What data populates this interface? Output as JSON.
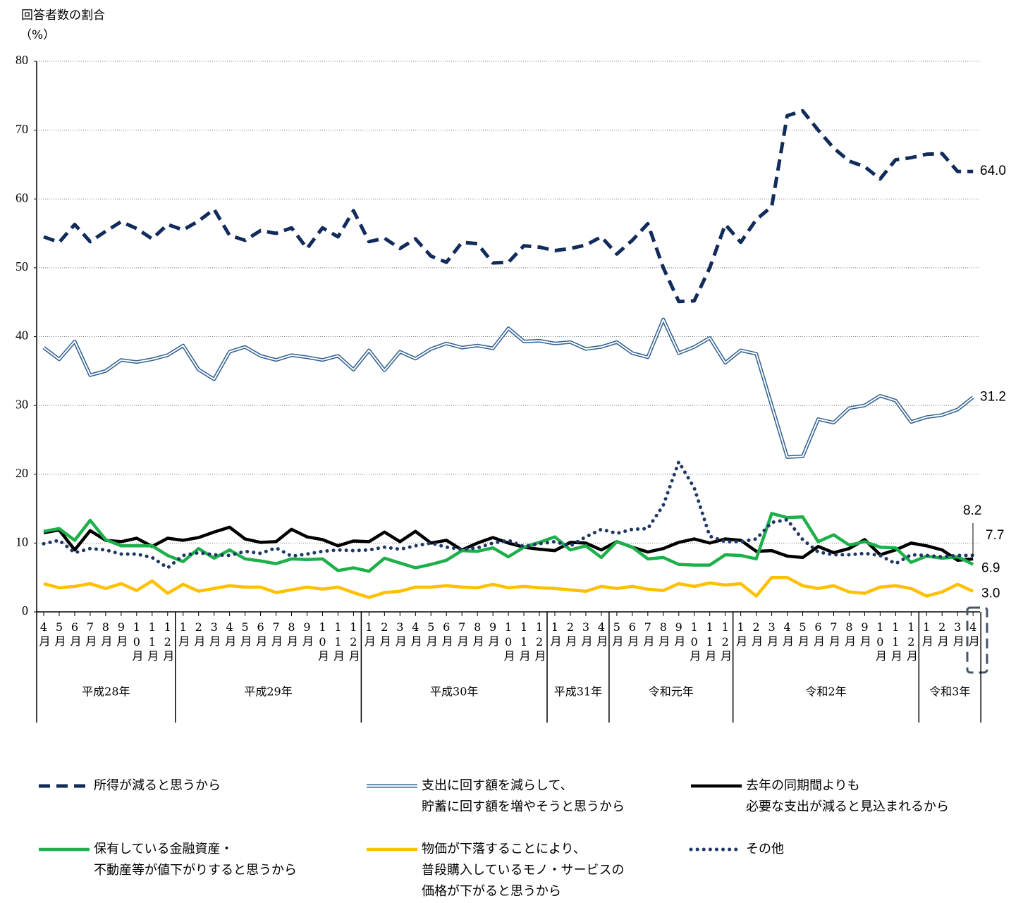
{
  "chart_data": {
    "type": "line",
    "ylabel": "回答者数の割合",
    "yunit": "（%）",
    "ylim": [
      0,
      80
    ],
    "yticks": [
      0,
      10,
      20,
      30,
      40,
      50,
      60,
      70,
      80
    ],
    "grid": true,
    "category_groups": [
      {
        "label": "平成28年",
        "categories": [
          "4月",
          "5月",
          "6月",
          "7月",
          "8月",
          "9月",
          "10月",
          "11月",
          "12月"
        ]
      },
      {
        "label": "平成29年",
        "categories": [
          "1月",
          "2月",
          "3月",
          "4月",
          "5月",
          "6月",
          "7月",
          "8月",
          "9月",
          "10月",
          "11月",
          "12月"
        ]
      },
      {
        "label": "平成30年",
        "categories": [
          "1月",
          "2月",
          "3月",
          "4月",
          "5月",
          "6月",
          "7月",
          "8月",
          "9月",
          "10月",
          "11月",
          "12月"
        ]
      },
      {
        "label": "平成31年",
        "categories": [
          "1月",
          "2月",
          "3月",
          "4月"
        ]
      },
      {
        "label": "令和元年",
        "categories": [
          "5月",
          "6月",
          "7月",
          "8月",
          "9月",
          "10月",
          "11月",
          "12月"
        ]
      },
      {
        "label": "令和2年",
        "categories": [
          "1月",
          "2月",
          "3月",
          "4月",
          "5月",
          "6月",
          "7月",
          "8月",
          "9月",
          "10月",
          "11月",
          "12月"
        ]
      },
      {
        "label": "令和3年",
        "categories": [
          "1月",
          "2月",
          "3月",
          "4月"
        ]
      }
    ],
    "series": [
      {
        "name": "所得が減ると思うから",
        "color": "#112b5a",
        "line_style": "dashed",
        "values": [
          54.5,
          53.7,
          56.3,
          53.8,
          55.3,
          56.7,
          55.7,
          54.2,
          56.3,
          55.5,
          56.8,
          58.5,
          54.7,
          54.0,
          55.4,
          55.0,
          55.8,
          52.8,
          55.8,
          54.5,
          58.3,
          53.8,
          54.3,
          52.8,
          54.2,
          51.7,
          50.8,
          53.7,
          53.5,
          50.7,
          50.8,
          53.2,
          53.0,
          52.5,
          52.8,
          53.3,
          54.5,
          52.0,
          54.0,
          56.4,
          50.0,
          45.1,
          45.2,
          50.0,
          56.3,
          53.7,
          57.0,
          58.9,
          72.1,
          72.8,
          70.0,
          67.4,
          65.5,
          64.7,
          62.9,
          65.7,
          66.0,
          66.5,
          66.6,
          64.0,
          64.0
        ],
        "value_labels": [
          null,
          null,
          null,
          null,
          null,
          null,
          null,
          null,
          null,
          null,
          null,
          null,
          null,
          null,
          null,
          null,
          null,
          null,
          null,
          null,
          null,
          null,
          null,
          null,
          null,
          null,
          null,
          null,
          null,
          null,
          null,
          null,
          null,
          null,
          null,
          null,
          null,
          null,
          null,
          null,
          null,
          null,
          null,
          null,
          null,
          null,
          null,
          null,
          null,
          null,
          null,
          null,
          null,
          null,
          null,
          null,
          null,
          null,
          null,
          null,
          "64.0"
        ]
      },
      {
        "name": "支出に回す額を減らして、\n貯蓄に回す額を増やそうと思うから",
        "color": "#2f5f8f",
        "line_style": "double",
        "values": [
          38.4,
          36.7,
          39.3,
          34.4,
          35.0,
          36.6,
          36.3,
          36.7,
          37.3,
          38.7,
          35.2,
          33.8,
          37.8,
          38.5,
          37.2,
          36.6,
          37.3,
          37.0,
          36.6,
          37.2,
          35.2,
          38.0,
          35.1,
          37.8,
          36.8,
          38.2,
          39.0,
          38.4,
          38.7,
          38.3,
          41.2,
          39.3,
          39.4,
          39.0,
          39.2,
          38.2,
          38.5,
          39.2,
          37.6,
          37.0,
          42.5,
          37.6,
          38.5,
          39.8,
          36.2,
          38.0,
          37.5,
          30.0,
          22.5,
          22.6,
          28.0,
          27.5,
          29.6,
          30.0,
          31.4,
          30.7,
          27.6,
          28.3,
          28.6,
          29.4,
          31.2
        ],
        "value_labels": [
          null,
          null,
          null,
          null,
          null,
          null,
          null,
          null,
          null,
          null,
          null,
          null,
          null,
          null,
          null,
          null,
          null,
          null,
          null,
          null,
          null,
          null,
          null,
          null,
          null,
          null,
          null,
          null,
          null,
          null,
          null,
          null,
          null,
          null,
          null,
          null,
          null,
          null,
          null,
          null,
          null,
          null,
          null,
          null,
          null,
          null,
          null,
          null,
          null,
          null,
          null,
          null,
          null,
          null,
          null,
          null,
          null,
          null,
          null,
          null,
          "31.2"
        ]
      },
      {
        "name": "去年の同期間よりも\n必要な支出が減ると見込まれるから",
        "color": "#000000",
        "line_style": "solid",
        "values": [
          11.5,
          11.9,
          9.0,
          11.8,
          10.4,
          10.2,
          10.7,
          9.5,
          10.7,
          10.4,
          10.8,
          11.6,
          12.3,
          10.6,
          10.1,
          10.2,
          12.0,
          10.9,
          10.5,
          9.6,
          10.3,
          10.2,
          11.6,
          10.2,
          11.7,
          10.0,
          10.4,
          9.0,
          10.0,
          10.8,
          10.0,
          9.4,
          9.1,
          8.9,
          10.1,
          10.0,
          9.0,
          10.2,
          9.4,
          8.7,
          9.2,
          10.1,
          10.6,
          10.0,
          10.6,
          10.4,
          8.8,
          8.9,
          8.1,
          7.9,
          9.5,
          8.6,
          9.2,
          10.5,
          8.3,
          9.0,
          10.0,
          9.6,
          9.0,
          7.5,
          7.7
        ],
        "value_labels": [
          null,
          null,
          null,
          null,
          null,
          null,
          null,
          null,
          null,
          null,
          null,
          null,
          null,
          null,
          null,
          null,
          null,
          null,
          null,
          null,
          null,
          null,
          null,
          null,
          null,
          null,
          null,
          null,
          null,
          null,
          null,
          null,
          null,
          null,
          null,
          null,
          null,
          null,
          null,
          null,
          null,
          null,
          null,
          null,
          null,
          null,
          null,
          null,
          null,
          null,
          null,
          null,
          null,
          null,
          null,
          null,
          null,
          null,
          null,
          null,
          "7.7"
        ]
      },
      {
        "name": "保有している金融資産・\n不動産等が値下がりすると思うから",
        "color": "#1db04a",
        "line_style": "solid",
        "values": [
          11.7,
          12.1,
          10.4,
          13.3,
          10.5,
          9.6,
          9.6,
          9.6,
          8.2,
          7.3,
          9.2,
          7.8,
          9.0,
          7.7,
          7.4,
          7.0,
          7.7,
          7.6,
          7.7,
          6.0,
          6.4,
          5.9,
          7.8,
          7.1,
          6.4,
          6.9,
          7.5,
          8.9,
          8.8,
          9.3,
          8.0,
          9.4,
          10.1,
          10.9,
          9.0,
          9.6,
          7.9,
          10.2,
          9.4,
          7.7,
          7.9,
          6.9,
          6.8,
          6.8,
          8.3,
          8.2,
          7.7,
          14.3,
          13.7,
          13.8,
          10.2,
          11.2,
          9.7,
          10.2,
          9.4,
          9.3,
          7.2,
          8.1,
          7.8,
          8.0,
          6.9
        ],
        "value_labels": [
          null,
          null,
          null,
          null,
          null,
          null,
          null,
          null,
          null,
          null,
          null,
          null,
          null,
          null,
          null,
          null,
          null,
          null,
          null,
          null,
          null,
          null,
          null,
          null,
          null,
          null,
          null,
          null,
          null,
          null,
          null,
          null,
          null,
          null,
          null,
          null,
          null,
          null,
          null,
          null,
          null,
          null,
          null,
          null,
          null,
          null,
          null,
          null,
          null,
          null,
          null,
          null,
          null,
          null,
          null,
          null,
          null,
          null,
          null,
          null,
          "6.9"
        ]
      },
      {
        "name": "物価が下落することにより、\n普段購入しているモノ・サービスの\n価格が下がると思うから",
        "color": "#ffc000",
        "line_style": "solid",
        "values": [
          4.1,
          3.5,
          3.7,
          4.1,
          3.4,
          4.1,
          3.1,
          4.5,
          2.7,
          4.0,
          3.0,
          3.4,
          3.8,
          3.6,
          3.6,
          2.8,
          3.2,
          3.6,
          3.3,
          3.6,
          2.8,
          2.1,
          2.8,
          3.0,
          3.6,
          3.6,
          3.8,
          3.6,
          3.5,
          4.0,
          3.5,
          3.7,
          3.5,
          3.4,
          3.2,
          3.0,
          3.7,
          3.4,
          3.7,
          3.3,
          3.1,
          4.1,
          3.7,
          4.2,
          3.9,
          4.1,
          2.3,
          5.0,
          5.0,
          3.8,
          3.4,
          3.8,
          2.9,
          2.7,
          3.6,
          3.8,
          3.4,
          2.3,
          2.9,
          4.0,
          3.0
        ],
        "value_labels": [
          null,
          null,
          null,
          null,
          null,
          null,
          null,
          null,
          null,
          null,
          null,
          null,
          null,
          null,
          null,
          null,
          null,
          null,
          null,
          null,
          null,
          null,
          null,
          null,
          null,
          null,
          null,
          null,
          null,
          null,
          null,
          null,
          null,
          null,
          null,
          null,
          null,
          null,
          null,
          null,
          null,
          null,
          null,
          null,
          null,
          null,
          null,
          null,
          null,
          null,
          null,
          null,
          null,
          null,
          null,
          null,
          null,
          null,
          null,
          null,
          "3.0"
        ]
      },
      {
        "name": "その他",
        "color": "#1f3864",
        "line_style": "dotted",
        "values": [
          9.9,
          10.4,
          8.6,
          9.2,
          9.0,
          8.4,
          8.4,
          7.9,
          6.4,
          8.2,
          8.6,
          8.3,
          8.2,
          8.8,
          8.5,
          9.3,
          8.1,
          8.4,
          8.8,
          9.0,
          8.9,
          9.0,
          9.4,
          9.1,
          9.6,
          10.0,
          9.4,
          9.1,
          9.3,
          10.0,
          10.4,
          9.5,
          9.9,
          10.2,
          9.6,
          10.9,
          12.0,
          11.4,
          12.0,
          12.1,
          15.5,
          21.8,
          18.0,
          11.0,
          10.2,
          10.2,
          10.6,
          13.0,
          13.4,
          10.5,
          8.7,
          8.3,
          8.3,
          8.5,
          8.2,
          7.0,
          8.3,
          8.2,
          8.0,
          8.2,
          8.2
        ],
        "value_labels": [
          null,
          null,
          null,
          null,
          null,
          null,
          null,
          null,
          null,
          null,
          null,
          null,
          null,
          null,
          null,
          null,
          null,
          null,
          null,
          null,
          null,
          null,
          null,
          null,
          null,
          null,
          null,
          null,
          null,
          null,
          null,
          null,
          null,
          null,
          null,
          null,
          null,
          null,
          null,
          null,
          null,
          null,
          null,
          null,
          null,
          null,
          null,
          null,
          null,
          null,
          null,
          null,
          null,
          null,
          null,
          null,
          null,
          null,
          null,
          null,
          "8.2"
        ]
      }
    ]
  }
}
